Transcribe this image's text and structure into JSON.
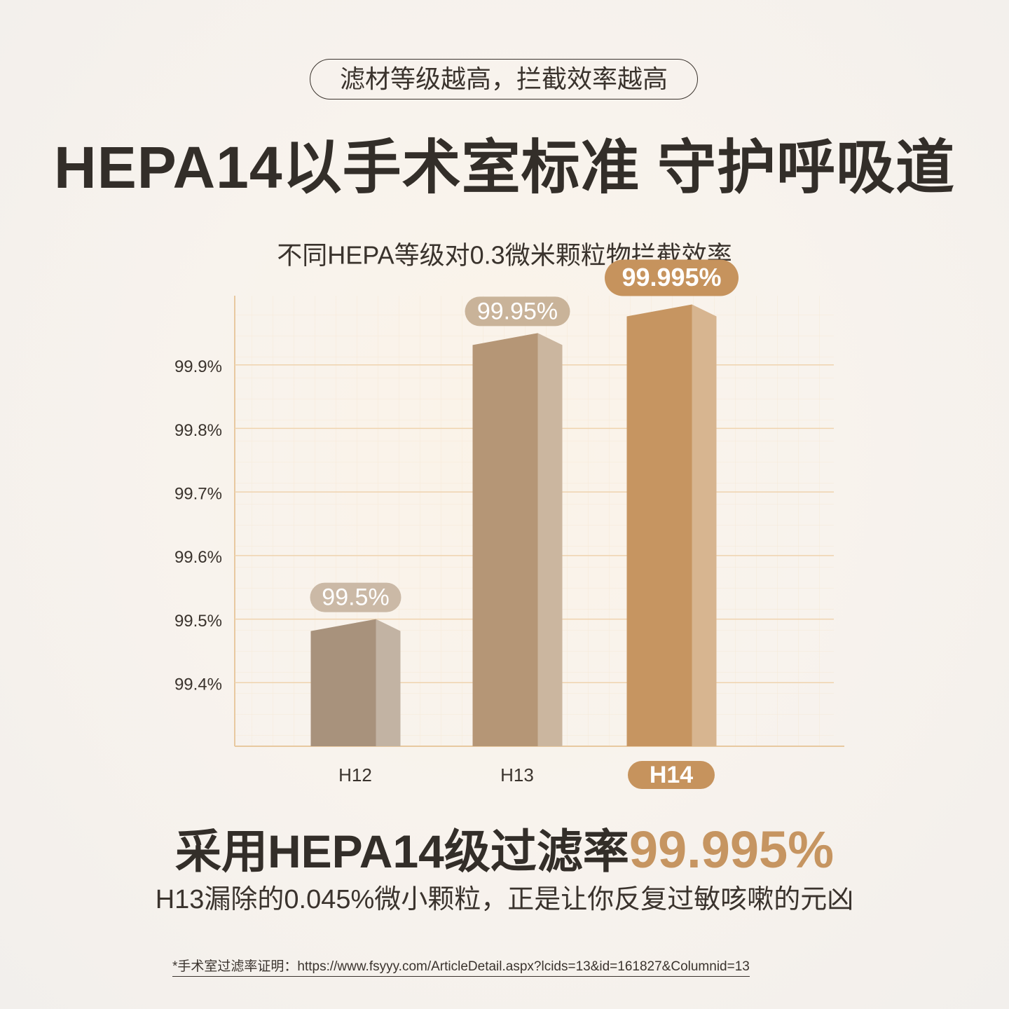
{
  "tag": "滤材等级越高，拦截效率越高",
  "headline": "HEPA14以手术室标准 守护呼吸道",
  "chart_data": {
    "type": "bar",
    "title": "不同HEPA等级对0.3微米颗粒物拦截效率",
    "categories": [
      "H12",
      "H13",
      "H14"
    ],
    "values": [
      99.5,
      99.95,
      99.995
    ],
    "value_labels": [
      "99.5%",
      "99.95%",
      "99.995%"
    ],
    "colors": [
      "#a8927c",
      "#b59676",
      "#c69561"
    ],
    "label_colors": [
      "#cbb9a6",
      "#c9b399",
      "#c6935d"
    ],
    "highlight": 2,
    "ylim": [
      99.3,
      100
    ],
    "yticks": [
      {
        "value": 99.4,
        "label": "99.4%"
      },
      {
        "value": 99.5,
        "label": "99.5%"
      },
      {
        "value": 99.6,
        "label": "99.6%"
      },
      {
        "value": 99.7,
        "label": "99.7%"
      },
      {
        "value": 99.8,
        "label": "99.8%"
      },
      {
        "value": 99.9,
        "label": "99.9%"
      }
    ],
    "grid": true
  },
  "summary": {
    "lead": "采用HEPA14级过滤率",
    "figure": "99.995%",
    "detail": "H13漏除的0.045%微小颗粒，正是让你反复过敏咳嗽的元凶"
  },
  "footnote": "*手术室过滤率证明：https://www.fsyyy.com/ArticleDetail.aspx?lcids=13&id=161827&Columnid=13"
}
